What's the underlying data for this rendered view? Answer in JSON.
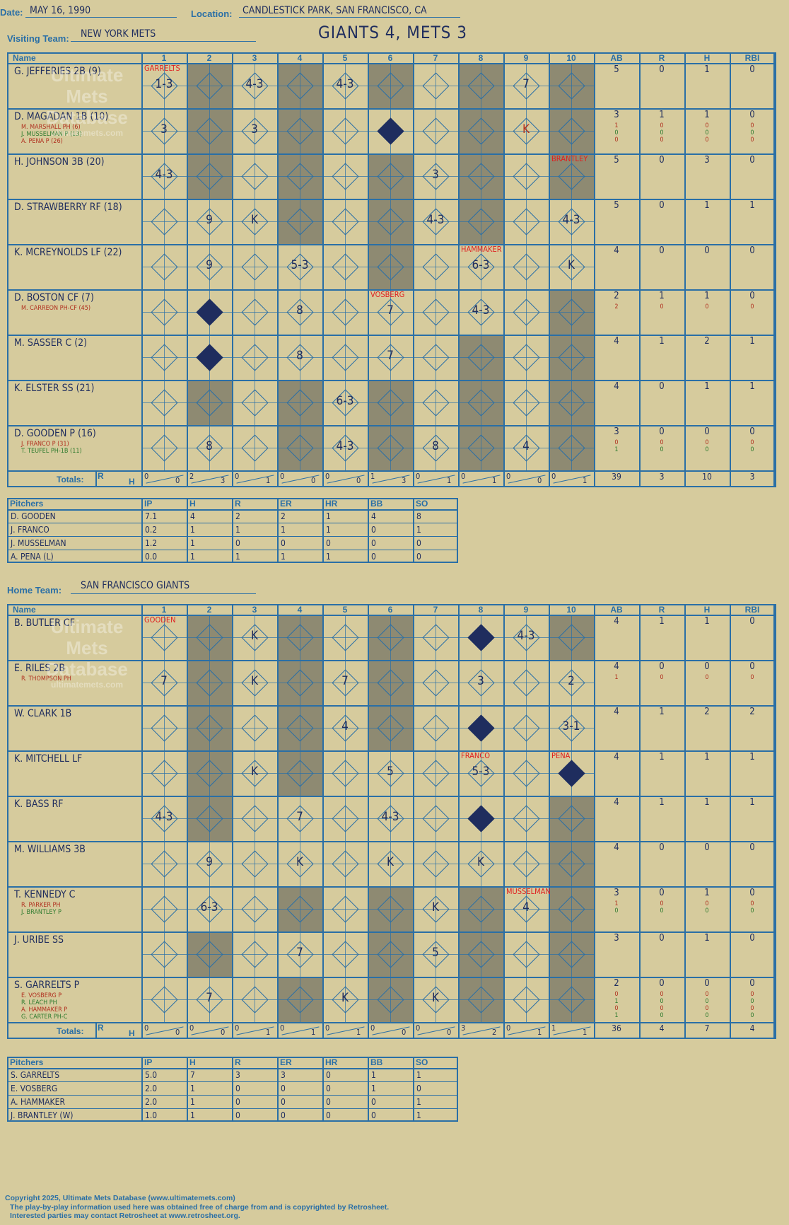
{
  "header": {
    "date_label": "Date:",
    "date": "MAY 16, 1990",
    "location_label": "Location:",
    "location": "CANDLESTICK PARK, SAN FRANCISCO, CA",
    "score_title": "GIANTS 4, METS 3",
    "visiting_label": "Visiting Team:",
    "visiting_team": "NEW YORK METS",
    "home_label": "Home Team:",
    "home_team": "SAN FRANCISCO GIANTS"
  },
  "grid_headers": {
    "name": "Name",
    "innings": [
      "1",
      "2",
      "3",
      "4",
      "5",
      "6",
      "7",
      "8",
      "9",
      "10"
    ],
    "stats": [
      "AB",
      "R",
      "H",
      "RBI"
    ],
    "totals": "Totals:",
    "r": "R",
    "h": "H"
  },
  "watermark": [
    "Ultimate",
    "Mets",
    "Database",
    "ultimatemets.com"
  ],
  "visitors": {
    "rows": [
      {
        "name": "G. JEFFERIES 2B (9)",
        "subs": [],
        "stats": [
          "5",
          "0",
          "1",
          "0"
        ],
        "substats": []
      },
      {
        "name": "D. MAGADAN 1B (10)",
        "subs": [
          "M. MARSHALL PH (6)",
          "J. MUSSELMAN P (13)",
          "A. PENA P (26)"
        ],
        "stats": [
          "3",
          "1",
          "1",
          "0"
        ],
        "substats": [
          [
            "1",
            "0",
            "0",
            "0"
          ],
          [
            "0",
            "0",
            "0",
            "0"
          ],
          [
            "0",
            "0",
            "0",
            "0"
          ]
        ]
      },
      {
        "name": "H. JOHNSON 3B (20)",
        "subs": [],
        "stats": [
          "5",
          "0",
          "3",
          "0"
        ],
        "substats": []
      },
      {
        "name": "D. STRAWBERRY RF (18)",
        "subs": [],
        "stats": [
          "5",
          "0",
          "1",
          "1"
        ],
        "substats": []
      },
      {
        "name": "K. MCREYNOLDS LF (22)",
        "subs": [],
        "stats": [
          "4",
          "0",
          "0",
          "0"
        ],
        "substats": []
      },
      {
        "name": "D. BOSTON CF (7)",
        "subs": [
          "M. CARREON PH-CF (45)"
        ],
        "stats": [
          "2",
          "1",
          "1",
          "0"
        ],
        "substats": [
          [
            "2",
            "0",
            "0",
            "0"
          ]
        ]
      },
      {
        "name": "M. SASSER C (2)",
        "subs": [],
        "stats": [
          "4",
          "1",
          "2",
          "1"
        ],
        "substats": []
      },
      {
        "name": "K. ELSTER SS (21)",
        "subs": [],
        "stats": [
          "4",
          "0",
          "1",
          "1"
        ],
        "substats": []
      },
      {
        "name": "D. GOODEN P (16)",
        "subs": [
          "J. FRANCO P (31)",
          "T. TEUFEL PH-1B (11)"
        ],
        "stats": [
          "3",
          "0",
          "0",
          "0"
        ],
        "substats": [
          [
            "0",
            "0",
            "0",
            "0"
          ],
          [
            "1",
            "0",
            "0",
            "0"
          ]
        ]
      }
    ],
    "plays": [
      {
        "row": 0,
        "inn": 1,
        "text": "1-3"
      },
      {
        "row": 0,
        "inn": 3,
        "text": "4-3"
      },
      {
        "row": 0,
        "inn": 5,
        "text": "4-3"
      },
      {
        "row": 0,
        "inn": 9,
        "text": "7"
      },
      {
        "row": 1,
        "inn": 1,
        "text": "3"
      },
      {
        "row": 1,
        "inn": 3,
        "text": "3"
      },
      {
        "row": 1,
        "inn": 9,
        "text": "K"
      },
      {
        "row": 2,
        "inn": 1,
        "text": "4-3"
      },
      {
        "row": 2,
        "inn": 7,
        "text": "3"
      },
      {
        "row": 3,
        "inn": 2,
        "text": "9"
      },
      {
        "row": 3,
        "inn": 3,
        "text": "K"
      },
      {
        "row": 3,
        "inn": 7,
        "text": "4-3"
      },
      {
        "row": 3,
        "inn": 10,
        "text": "4-3"
      },
      {
        "row": 4,
        "inn": 2,
        "text": "9"
      },
      {
        "row": 4,
        "inn": 4,
        "text": "5-3"
      },
      {
        "row": 4,
        "inn": 8,
        "text": "6-3"
      },
      {
        "row": 4,
        "inn": 10,
        "text": "K"
      },
      {
        "row": 5,
        "inn": 4,
        "text": "8"
      },
      {
        "row": 5,
        "inn": 6,
        "text": "7"
      },
      {
        "row": 5,
        "inn": 8,
        "text": "4-3"
      },
      {
        "row": 6,
        "inn": 4,
        "text": "8"
      },
      {
        "row": 6,
        "inn": 6,
        "text": "7"
      },
      {
        "row": 7,
        "inn": 5,
        "text": "6-3"
      },
      {
        "row": 8,
        "inn": 2,
        "text": "8"
      },
      {
        "row": 8,
        "inn": 5,
        "text": "4-3"
      },
      {
        "row": 8,
        "inn": 7,
        "text": "8"
      },
      {
        "row": 8,
        "inn": 9,
        "text": "4"
      }
    ],
    "notes": [
      {
        "row": 0,
        "inn": 1,
        "text": "GARRELTS"
      },
      {
        "row": 2,
        "inn": 10,
        "text": "BRANTLEY"
      },
      {
        "row": 4,
        "inn": 8,
        "text": "HAMMAKER"
      },
      {
        "row": 5,
        "inn": 6,
        "text": "VOSBERG"
      }
    ],
    "runs": [
      {
        "row": 1,
        "inn": 6
      },
      {
        "row": 5,
        "inn": 2
      },
      {
        "row": 6,
        "inn": 2
      }
    ],
    "totals": [
      [
        "0",
        "0"
      ],
      [
        "2",
        "3"
      ],
      [
        "0",
        "1"
      ],
      [
        "0",
        "0"
      ],
      [
        "0",
        "0"
      ],
      [
        "1",
        "3"
      ],
      [
        "0",
        "1"
      ],
      [
        "0",
        "1"
      ],
      [
        "0",
        "0"
      ],
      [
        "0",
        "1"
      ]
    ],
    "stat_totals": [
      "39",
      "3",
      "10",
      "3"
    ],
    "pitchers_header": [
      "Pitchers",
      "IP",
      "H",
      "R",
      "ER",
      "HR",
      "BB",
      "SO"
    ],
    "pitchers": [
      [
        "D. GOODEN",
        "7.1",
        "4",
        "2",
        "2",
        "1",
        "4",
        "8"
      ],
      [
        "J. FRANCO",
        "0.2",
        "1",
        "1",
        "1",
        "1",
        "0",
        "1"
      ],
      [
        "J. MUSSELMAN",
        "1.2",
        "1",
        "0",
        "0",
        "0",
        "0",
        "0"
      ],
      [
        "A. PENA (L)",
        "0.0",
        "1",
        "1",
        "1",
        "1",
        "0",
        "0"
      ]
    ]
  },
  "home": {
    "rows": [
      {
        "name": "B. BUTLER CF",
        "subs": [],
        "stats": [
          "4",
          "1",
          "1",
          "0"
        ],
        "substats": []
      },
      {
        "name": "E. RILES 2B",
        "subs": [
          "R. THOMPSON PH"
        ],
        "stats": [
          "4",
          "0",
          "0",
          "0"
        ],
        "substats": [
          [
            "1",
            "0",
            "0",
            "0"
          ]
        ]
      },
      {
        "name": "W. CLARK 1B",
        "subs": [],
        "stats": [
          "4",
          "1",
          "2",
          "2"
        ],
        "substats": []
      },
      {
        "name": "K. MITCHELL LF",
        "subs": [],
        "stats": [
          "4",
          "1",
          "1",
          "1"
        ],
        "substats": []
      },
      {
        "name": "K. BASS RF",
        "subs": [],
        "stats": [
          "4",
          "1",
          "1",
          "1"
        ],
        "substats": []
      },
      {
        "name": "M. WILLIAMS 3B",
        "subs": [],
        "stats": [
          "4",
          "0",
          "0",
          "0"
        ],
        "substats": []
      },
      {
        "name": "T. KENNEDY C",
        "subs": [
          "R. PARKER PH",
          "J. BRANTLEY P"
        ],
        "stats": [
          "3",
          "0",
          "1",
          "0"
        ],
        "substats": [
          [
            "1",
            "0",
            "0",
            "0"
          ],
          [
            "0",
            "0",
            "0",
            "0"
          ]
        ]
      },
      {
        "name": "J. URIBE SS",
        "subs": [],
        "stats": [
          "3",
          "0",
          "1",
          "0"
        ],
        "substats": []
      },
      {
        "name": "S. GARRELTS P",
        "subs": [
          "E. VOSBERG P",
          "R. LEACH PH",
          "A. HAMMAKER P",
          "G. CARTER PH-C"
        ],
        "stats": [
          "2",
          "0",
          "0",
          "0"
        ],
        "substats": [
          [
            "0",
            "0",
            "0",
            "0"
          ],
          [
            "1",
            "0",
            "0",
            "0"
          ],
          [
            "0",
            "0",
            "0",
            "0"
          ],
          [
            "1",
            "0",
            "0",
            "0"
          ]
        ]
      }
    ],
    "plays": [
      {
        "row": 0,
        "inn": 3,
        "text": "K"
      },
      {
        "row": 0,
        "inn": 9,
        "text": "4-3"
      },
      {
        "row": 1,
        "inn": 1,
        "text": "7"
      },
      {
        "row": 1,
        "inn": 3,
        "text": "K"
      },
      {
        "row": 1,
        "inn": 5,
        "text": "7"
      },
      {
        "row": 1,
        "inn": 8,
        "text": "3"
      },
      {
        "row": 1,
        "inn": 10,
        "text": "2"
      },
      {
        "row": 2,
        "inn": 5,
        "text": "4"
      },
      {
        "row": 2,
        "inn": 10,
        "text": "3-1"
      },
      {
        "row": 3,
        "inn": 3,
        "text": "K"
      },
      {
        "row": 3,
        "inn": 6,
        "text": "5"
      },
      {
        "row": 3,
        "inn": 8,
        "text": "5-3"
      },
      {
        "row": 4,
        "inn": 1,
        "text": "4-3"
      },
      {
        "row": 4,
        "inn": 4,
        "text": "7"
      },
      {
        "row": 4,
        "inn": 6,
        "text": "4-3"
      },
      {
        "row": 5,
        "inn": 2,
        "text": "9"
      },
      {
        "row": 5,
        "inn": 4,
        "text": "K"
      },
      {
        "row": 5,
        "inn": 6,
        "text": "K"
      },
      {
        "row": 5,
        "inn": 8,
        "text": "K"
      },
      {
        "row": 6,
        "inn": 2,
        "text": "6-3"
      },
      {
        "row": 6,
        "inn": 7,
        "text": "K"
      },
      {
        "row": 6,
        "inn": 9,
        "text": "4"
      },
      {
        "row": 7,
        "inn": 4,
        "text": "7"
      },
      {
        "row": 7,
        "inn": 7,
        "text": "5"
      },
      {
        "row": 8,
        "inn": 2,
        "text": "7"
      },
      {
        "row": 8,
        "inn": 5,
        "text": "K"
      },
      {
        "row": 8,
        "inn": 7,
        "text": "K"
      }
    ],
    "notes": [
      {
        "row": 0,
        "inn": 1,
        "text": "GOODEN"
      },
      {
        "row": 3,
        "inn": 8,
        "text": "FRANCO"
      },
      {
        "row": 3,
        "inn": 10,
        "text": "PENA"
      },
      {
        "row": 6,
        "inn": 9,
        "text": "MUSSELMAN"
      }
    ],
    "runs": [
      {
        "row": 0,
        "inn": 8
      },
      {
        "row": 2,
        "inn": 8
      },
      {
        "row": 3,
        "inn": 10
      },
      {
        "row": 4,
        "inn": 8
      }
    ],
    "totals": [
      [
        "0",
        "0"
      ],
      [
        "0",
        "0"
      ],
      [
        "0",
        "1"
      ],
      [
        "0",
        "1"
      ],
      [
        "0",
        "1"
      ],
      [
        "0",
        "0"
      ],
      [
        "0",
        "0"
      ],
      [
        "3",
        "2"
      ],
      [
        "0",
        "1"
      ],
      [
        "1",
        "1"
      ]
    ],
    "stat_totals": [
      "36",
      "4",
      "7",
      "4"
    ],
    "pitchers_header": [
      "Pitchers",
      "IP",
      "H",
      "R",
      "ER",
      "HR",
      "BB",
      "SO"
    ],
    "pitchers": [
      [
        "S. GARRELTS",
        "5.0",
        "7",
        "3",
        "3",
        "0",
        "1",
        "1"
      ],
      [
        "E. VOSBERG",
        "2.0",
        "1",
        "0",
        "0",
        "0",
        "1",
        "0"
      ],
      [
        "A. HAMMAKER",
        "2.0",
        "1",
        "0",
        "0",
        "0",
        "0",
        "1"
      ],
      [
        "J. BRANTLEY (W)",
        "1.0",
        "1",
        "0",
        "0",
        "0",
        "0",
        "1"
      ]
    ]
  },
  "footer": {
    "line1": "Copyright 2025, Ultimate Mets Database (www.ultimatemets.com)",
    "line2": "The play-by-play information used here was obtained free of charge from and is copyrighted by Retrosheet.",
    "line3": "Interested parties may contact Retrosheet at www.retrosheet.org."
  }
}
